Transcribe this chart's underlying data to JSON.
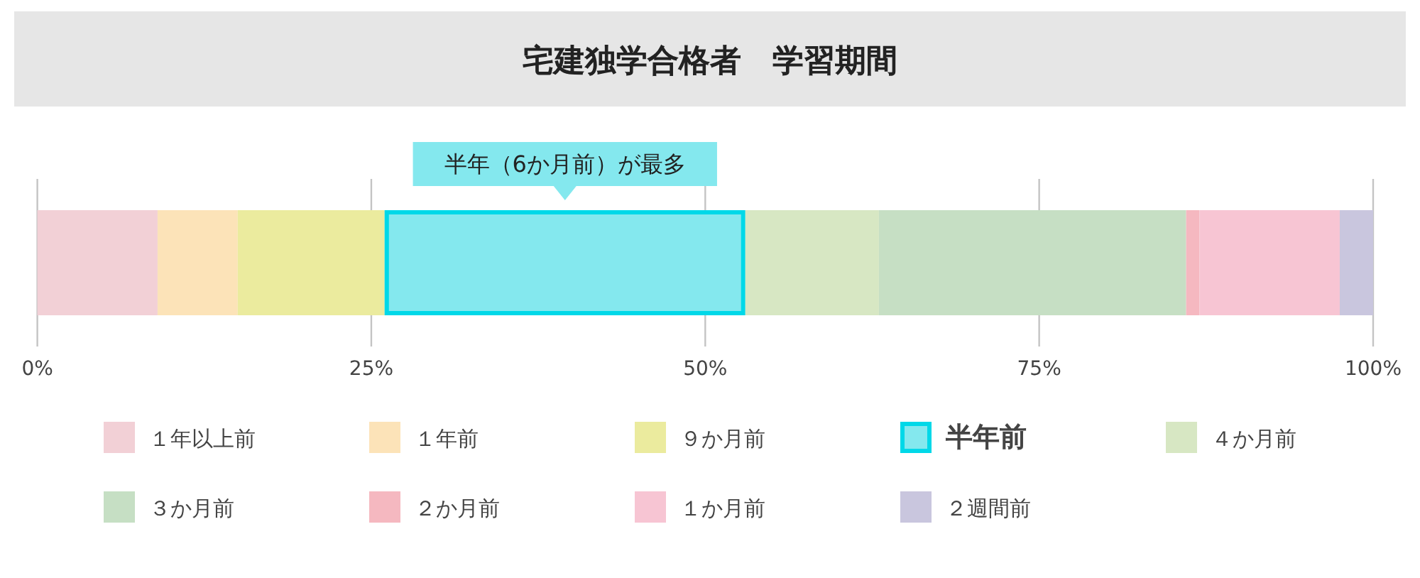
{
  "chart_data": {
    "type": "bar",
    "orientation": "horizontal",
    "stacked": true,
    "title": "宅建独学合格者　学習期間",
    "categories": [
      null
    ],
    "series": [
      {
        "name": "１年以上前",
        "color": "#f2d0d6",
        "values": [
          9
        ]
      },
      {
        "name": "１年前",
        "color": "#fce3b8",
        "values": [
          6
        ]
      },
      {
        "name": "９か月前",
        "color": "#ebeb9e",
        "values": [
          11
        ]
      },
      {
        "name": "半年前",
        "color": "#84e8ee",
        "values": [
          27
        ]
      },
      {
        "name": "４か月前",
        "color": "#d7e7c3",
        "values": [
          10
        ]
      },
      {
        "name": "３か月前",
        "color": "#c6dfc4",
        "values": [
          23
        ]
      },
      {
        "name": "２か月前",
        "color": "#f5b8c0",
        "values": [
          1
        ]
      },
      {
        "name": "１か月前",
        "color": "#f7c5d3",
        "values": [
          10.5
        ]
      },
      {
        "name": "２週間前",
        "color": "#c9c6de",
        "values": [
          2.5
        ]
      }
    ],
    "xlim": [
      0,
      100
    ],
    "xticks": [
      {
        "value": 0,
        "label": "0%"
      },
      {
        "value": 25,
        "label": "25%"
      },
      {
        "value": 50,
        "label": "50%"
      },
      {
        "value": 75,
        "label": "75%"
      },
      {
        "value": 100,
        "label": "100%"
      }
    ],
    "grid": "x",
    "legend": "bottom",
    "annotations": [
      "半年（6か月前）が最多"
    ]
  }
}
